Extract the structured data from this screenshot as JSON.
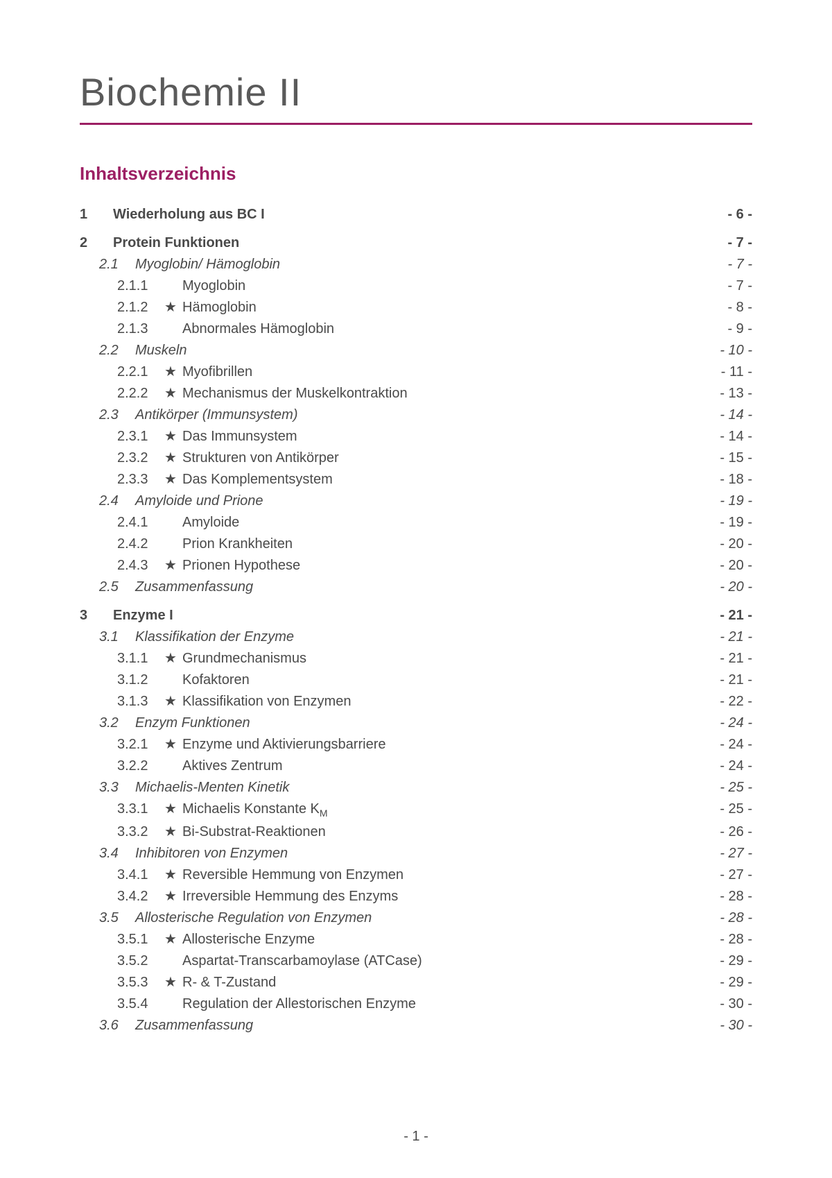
{
  "colors": {
    "accent": "#9c1f63",
    "title_text": "#5a5a5a",
    "body_text": "#4a4a4a",
    "background": "#ffffff"
  },
  "title": "Biochemie II",
  "toc_heading": "Inhaltsverzeichnis",
  "footer_page": "- 1 -",
  "star_glyph": "★",
  "toc": [
    {
      "level": 1,
      "num": "1",
      "label": "Wiederholung aus BC I",
      "page": "- 6 -",
      "star": false
    },
    {
      "level": 1,
      "num": "2",
      "label": "Protein Funktionen",
      "page": "- 7 -",
      "star": false
    },
    {
      "level": 2,
      "num": "2.1",
      "label": "Myoglobin/ Hämoglobin",
      "page": "- 7 -",
      "star": false
    },
    {
      "level": 3,
      "num": "2.1.1",
      "label": "Myoglobin",
      "page": "- 7 -",
      "star": false
    },
    {
      "level": 3,
      "num": "2.1.2",
      "label": "Hämoglobin",
      "page": "- 8 -",
      "star": true
    },
    {
      "level": 3,
      "num": "2.1.3",
      "label": "Abnormales Hämoglobin",
      "page": "- 9 -",
      "star": false
    },
    {
      "level": 2,
      "num": "2.2",
      "label": "Muskeln",
      "page": "- 10 -",
      "star": false
    },
    {
      "level": 3,
      "num": "2.2.1",
      "label": "Myofibrillen",
      "page": "- 11 -",
      "star": true
    },
    {
      "level": 3,
      "num": "2.2.2",
      "label": "Mechanismus der Muskelkontraktion",
      "page": "- 13 -",
      "star": true
    },
    {
      "level": 2,
      "num": "2.3",
      "label": "Antikörper (Immunsystem)",
      "page": "- 14 -",
      "star": false
    },
    {
      "level": 3,
      "num": "2.3.1",
      "label": "Das Immunsystem",
      "page": "- 14 -",
      "star": true
    },
    {
      "level": 3,
      "num": "2.3.2",
      "label": "Strukturen von Antikörper",
      "page": "- 15 -",
      "star": true
    },
    {
      "level": 3,
      "num": "2.3.3",
      "label": "Das Komplementsystem",
      "page": "- 18 -",
      "star": true
    },
    {
      "level": 2,
      "num": "2.4",
      "label": "Amyloide und Prione",
      "page": "- 19 -",
      "star": false
    },
    {
      "level": 3,
      "num": "2.4.1",
      "label": "Amyloide",
      "page": "- 19 -",
      "star": false
    },
    {
      "level": 3,
      "num": "2.4.2",
      "label": "Prion Krankheiten",
      "page": "- 20 -",
      "star": false
    },
    {
      "level": 3,
      "num": "2.4.3",
      "label": "Prionen Hypothese",
      "page": "- 20 -",
      "star": true
    },
    {
      "level": 2,
      "num": "2.5",
      "label": "Zusammenfassung",
      "page": "- 20 -",
      "star": false
    },
    {
      "level": 1,
      "num": "3",
      "label": "Enzyme I",
      "page": "- 21 -",
      "star": false
    },
    {
      "level": 2,
      "num": "3.1",
      "label": "Klassifikation der Enzyme",
      "page": "- 21 -",
      "star": false
    },
    {
      "level": 3,
      "num": "3.1.1",
      "label": "Grundmechanismus",
      "page": "- 21 -",
      "star": true
    },
    {
      "level": 3,
      "num": "3.1.2",
      "label": "Kofaktoren",
      "page": "- 21 -",
      "star": false
    },
    {
      "level": 3,
      "num": "3.1.3",
      "label": "Klassifikation von Enzymen",
      "page": "- 22 -",
      "star": true
    },
    {
      "level": 2,
      "num": "3.2",
      "label": "Enzym Funktionen",
      "page": "- 24 -",
      "star": false
    },
    {
      "level": 3,
      "num": "3.2.1",
      "label": "Enzyme und Aktivierungsbarriere",
      "page": "- 24 -",
      "star": true
    },
    {
      "level": 3,
      "num": "3.2.2",
      "label": "Aktives Zentrum",
      "page": "- 24 -",
      "star": false
    },
    {
      "level": 2,
      "num": "3.3",
      "label": "Michaelis-Menten Kinetik",
      "page": "- 25 -",
      "star": false
    },
    {
      "level": 3,
      "num": "3.3.1",
      "label": "Michaelis Konstante K",
      "label_suffix_sub": "M",
      "page": "- 25 -",
      "star": true
    },
    {
      "level": 3,
      "num": "3.3.2",
      "label": "Bi-Substrat-Reaktionen",
      "page": "- 26 -",
      "star": true
    },
    {
      "level": 2,
      "num": "3.4",
      "label": "Inhibitoren von Enzymen",
      "page": "- 27 -",
      "star": false
    },
    {
      "level": 3,
      "num": "3.4.1",
      "label": "Reversible Hemmung von Enzymen",
      "page": "- 27 -",
      "star": true
    },
    {
      "level": 3,
      "num": "3.4.2",
      "label": "Irreversible Hemmung des Enzyms",
      "page": "- 28 -",
      "star": true
    },
    {
      "level": 2,
      "num": "3.5",
      "label": "Allosterische Regulation von Enzymen",
      "page": "- 28 -",
      "star": false
    },
    {
      "level": 3,
      "num": "3.5.1",
      "label": "Allosterische Enzyme",
      "page": "- 28 -",
      "star": true
    },
    {
      "level": 3,
      "num": "3.5.2",
      "label": "Aspartat-Transcarbamoylase (ATCase)",
      "page": "- 29 -",
      "star": false
    },
    {
      "level": 3,
      "num": "3.5.3",
      "label": "R- & T-Zustand",
      "page": "- 29 -",
      "star": true
    },
    {
      "level": 3,
      "num": "3.5.4",
      "label": "Regulation der Allestorischen Enzyme",
      "page": "- 30 -",
      "star": false
    },
    {
      "level": 2,
      "num": "3.6",
      "label": "Zusammenfassung",
      "page": "- 30 -",
      "star": false
    }
  ]
}
